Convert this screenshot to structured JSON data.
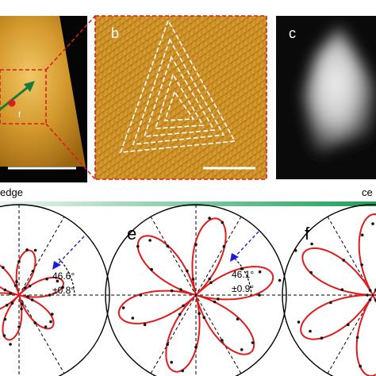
{
  "panels": {
    "b": {
      "label": "b"
    },
    "c": {
      "label": "c"
    },
    "e": {
      "label": "e",
      "angle": "46.1°",
      "error": "±0.9°"
    },
    "f": {
      "label": "f"
    },
    "d": {
      "angle": "46.6°",
      "error": "±0.8°"
    },
    "a": {
      "marker_label": "f"
    }
  },
  "gradient_bar": {
    "left_label": "edge",
    "right_label": "ce"
  },
  "colors": {
    "accent_red": "#e01b1b",
    "arrow_green": "#1a7a3a",
    "arrow_blue": "#1a1ae0",
    "gradient_left": "#eaf7ef",
    "gradient_right": "#1f9e5a"
  },
  "polar_rose": {
    "petals": 6,
    "fit_color": "#e01b1b",
    "points_color": "#111111"
  }
}
